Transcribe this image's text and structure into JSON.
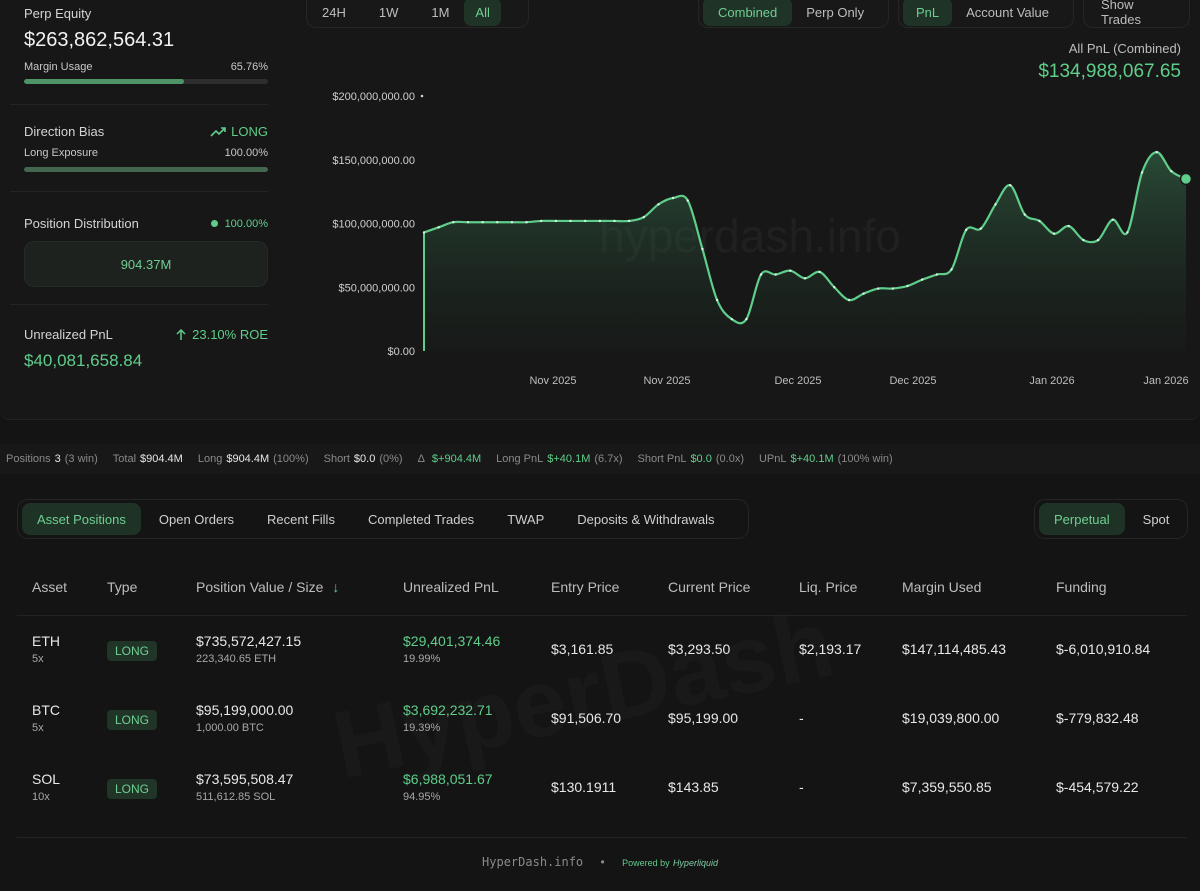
{
  "summary": {
    "perp_equity_label": "Perp Equity",
    "perp_equity_value": "$263,862,564.31",
    "margin_usage_label": "Margin Usage",
    "margin_usage_value": "65.76%",
    "margin_usage_fraction": 0.6576,
    "direction_bias_label": "Direction Bias",
    "direction_bias_value": "LONG",
    "long_exposure_label": "Long Exposure",
    "long_exposure_value": "100.00%",
    "long_exposure_fraction": 1.0,
    "position_distribution_label": "Position Distribution",
    "position_distribution_pct": "100.00%",
    "position_distribution_amount": "904.37M",
    "unrealized_pnl_label": "Unrealized PnL",
    "unrealized_pnl_roe": "23.10% ROE",
    "unrealized_pnl_value": "$40,081,658.84"
  },
  "controls": {
    "range": [
      "24H",
      "1W",
      "1M",
      "All"
    ],
    "range_active": "All",
    "mode": [
      "Combined",
      "Perp Only"
    ],
    "mode_active": "Combined",
    "metric": [
      "PnL",
      "Account Value"
    ],
    "metric_active": "PnL",
    "show_trades": "Show Trades"
  },
  "chart_header": {
    "label": "All PnL (Combined)",
    "value": "$134,988,067.65"
  },
  "watermark": "hyperdash.info",
  "chart_data": {
    "type": "area",
    "ylim": [
      0,
      200000000
    ],
    "y_ticks": [
      "$0.00",
      "$50,000,000.00",
      "$100,000,000.00",
      "$150,000,000.00",
      "$200,000,000.00"
    ],
    "x_ticks": [
      "Nov 2025",
      "Nov 2025",
      "Dec 2025",
      "Dec 2025",
      "Jan 2026",
      "Jan 2026"
    ],
    "grid": false,
    "color": "#5fce8a",
    "series": [
      {
        "values": [
          93000000,
          97000000,
          101000000,
          101000000,
          101000000,
          101000000,
          101000000,
          101000000,
          102000000,
          102000000,
          102000000,
          102000000,
          102000000,
          102000000,
          102000000,
          105000000,
          115000000,
          120000000,
          118000000,
          80000000,
          40000000,
          25000000,
          25000000,
          60000000,
          60000000,
          63000000,
          57000000,
          62000000,
          50000000,
          40000000,
          45000000,
          49000000,
          49000000,
          51000000,
          56000000,
          60000000,
          64000000,
          95000000,
          96000000,
          115000000,
          130000000,
          107000000,
          102000000,
          92000000,
          98000000,
          87000000,
          87000000,
          103000000,
          93000000,
          140000000,
          156000000,
          141000000,
          135000000
        ]
      }
    ]
  },
  "stats_bar": {
    "positions_label": "Positions",
    "positions_value": "3",
    "positions_note": "(3 win)",
    "total_label": "Total",
    "total_value": "$904.4M",
    "long_label": "Long",
    "long_value": "$904.4M",
    "long_note": "(100%)",
    "short_label": "Short",
    "short_value": "$0.0",
    "short_note": "(0%)",
    "delta_label": "Δ",
    "delta_value": "$+904.4M",
    "long_pnl_label": "Long PnL",
    "long_pnl_value": "$+40.1M",
    "long_pnl_note": "(6.7x)",
    "short_pnl_label": "Short PnL",
    "short_pnl_value": "$0.0",
    "short_pnl_note": "(0.0x)",
    "upnl_label": "UPnL",
    "upnl_value": "$+40.1M",
    "upnl_note": "(100% win)"
  },
  "tabs": [
    "Asset Positions",
    "Open Orders",
    "Recent Fills",
    "Completed Trades",
    "TWAP",
    "Deposits & Withdrawals"
  ],
  "tab_active": "Asset Positions",
  "market_types": [
    "Perpetual",
    "Spot"
  ],
  "market_active": "Perpetual",
  "table": {
    "headers": [
      "Asset",
      "Type",
      "Position Value / Size",
      "Unrealized PnL",
      "Entry Price",
      "Current Price",
      "Liq. Price",
      "Margin Used",
      "Funding"
    ],
    "sort_icon": "↓",
    "rows": [
      {
        "asset": "ETH",
        "leverage": "5x",
        "type": "LONG",
        "value": "$735,572,427.15",
        "size": "223,340.65 ETH",
        "pnl": "$29,401,374.46",
        "pnl_pct": "19.99%",
        "entry": "$3,161.85",
        "current": "$3,293.50",
        "liq": "$2,193.17",
        "margin": "$147,114,485.43",
        "funding": "$-6,010,910.84"
      },
      {
        "asset": "BTC",
        "leverage": "5x",
        "type": "LONG",
        "value": "$95,199,000.00",
        "size": "1,000.00 BTC",
        "pnl": "$3,692,232.71",
        "pnl_pct": "19.39%",
        "entry": "$91,506.70",
        "current": "$95,199.00",
        "liq": "-",
        "margin": "$19,039,800.00",
        "funding": "$-779,832.48"
      },
      {
        "asset": "SOL",
        "leverage": "10x",
        "type": "LONG",
        "value": "$73,595,508.47",
        "size": "511,612.85 SOL",
        "pnl": "$6,988,051.67",
        "pnl_pct": "94.95%",
        "entry": "$130.1911",
        "current": "$143.85",
        "liq": "-",
        "margin": "$7,359,550.85",
        "funding": "$-454,579.22"
      }
    ]
  },
  "footer": {
    "site": "HyperDash.info",
    "sep": "•",
    "powered": "Powered by",
    "brand": "Hyperliquid"
  }
}
